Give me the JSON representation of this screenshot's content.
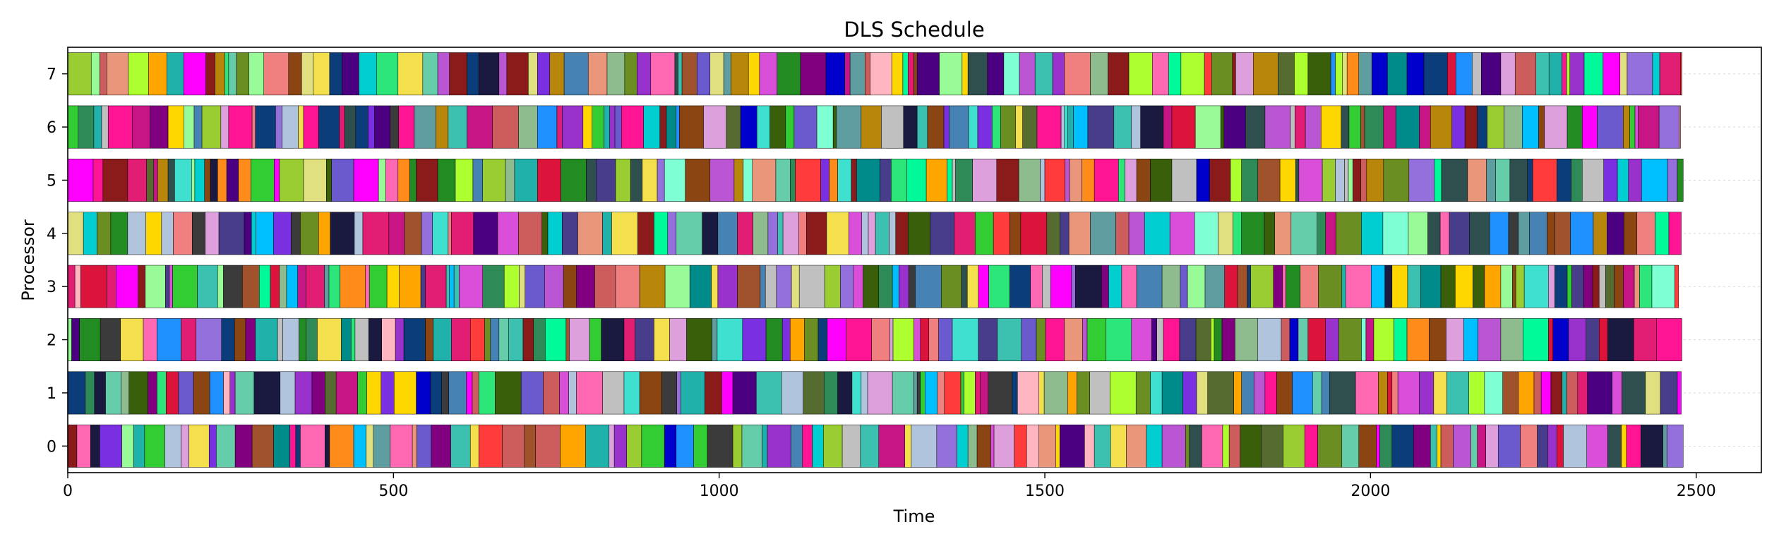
{
  "chart_data": {
    "type": "gantt",
    "title": "DLS Schedule",
    "xlabel": "Time",
    "ylabel": "Processor",
    "xlim": [
      0,
      2600
    ],
    "ylim": [
      -0.5,
      7.5
    ],
    "x_ticks": [
      0,
      500,
      1000,
      1500,
      2000,
      2500
    ],
    "x_tick_labels": [
      "0",
      "500",
      "1000",
      "1500",
      "2000",
      "2500"
    ],
    "y_ticks": [
      0,
      1,
      2,
      3,
      4,
      5,
      6,
      7
    ],
    "y_tick_labels": [
      "0",
      "1",
      "2",
      "3",
      "4",
      "5",
      "6",
      "7"
    ],
    "grid": true,
    "bar_height": 0.8,
    "processors": [
      {
        "id": 0,
        "end_time": 2480,
        "seed": 11
      },
      {
        "id": 1,
        "end_time": 2477,
        "seed": 23
      },
      {
        "id": 2,
        "end_time": 2478,
        "seed": 37
      },
      {
        "id": 3,
        "end_time": 2473,
        "seed": 41
      },
      {
        "id": 4,
        "end_time": 2477,
        "seed": 53
      },
      {
        "id": 5,
        "end_time": 2480,
        "seed": 67
      },
      {
        "id": 6,
        "end_time": 2476,
        "seed": 79
      },
      {
        "id": 7,
        "end_time": 2478,
        "seed": 97
      }
    ],
    "palette": [
      "#3cc0b0",
      "#0b3d7a",
      "#e11d74",
      "#8b1a1a",
      "#2ce67a",
      "#7a2fe0",
      "#f4e04d",
      "#ff3b3b",
      "#1e90ff",
      "#9acd32",
      "#d94fd9",
      "#6b8e23",
      "#ff8c1a",
      "#4b0082",
      "#00ced1",
      "#c71585",
      "#2e8b57",
      "#b8860b",
      "#5f9ea0",
      "#ff69b4",
      "#8fbc8f",
      "#483d8b",
      "#dc143c",
      "#00fa9a",
      "#9932cc",
      "#7fffd4",
      "#ffd700",
      "#556b2f",
      "#ba55d3",
      "#20b2aa",
      "#f08080",
      "#4682b4",
      "#adff2f",
      "#800080",
      "#e9967a",
      "#008b8b",
      "#b0c4de",
      "#ff1493",
      "#3a5f0b",
      "#9370db",
      "#32cd32",
      "#a0522d",
      "#66cdaa",
      "#1a1a40",
      "#ffa500",
      "#6a5acd",
      "#00bfff",
      "#c0c0c0",
      "#228b22",
      "#ff00ff",
      "#3b3b3b",
      "#dda0dd",
      "#8b4513",
      "#40e0d0",
      "#e0e080",
      "#0000cd",
      "#98fb98",
      "#cd5c5c",
      "#2f4f4f",
      "#ffb6c1"
    ]
  }
}
